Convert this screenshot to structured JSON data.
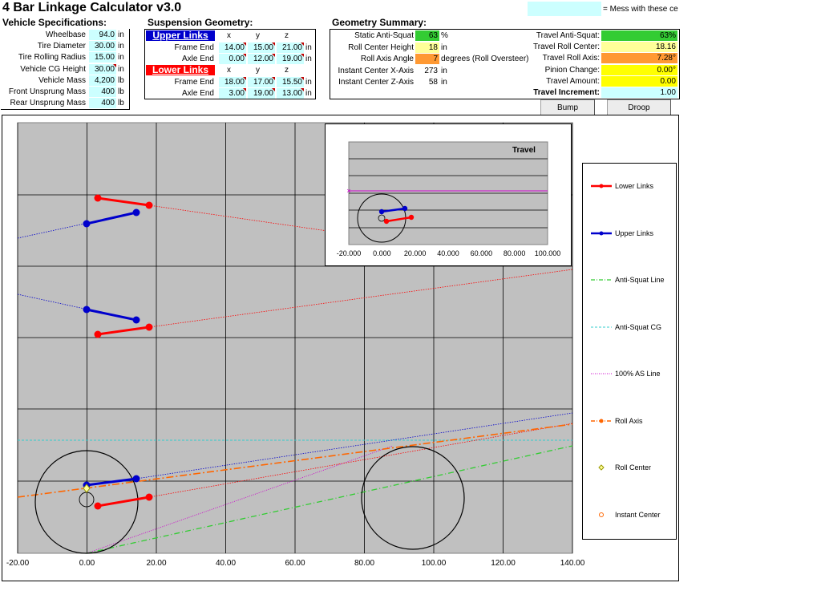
{
  "title": "4 Bar Linkage Calculator v3.0",
  "legend_note": "= Mess with these ce",
  "vehicle": {
    "heading": "Vehicle Specifications:",
    "rows": [
      {
        "label": "Wheelbase",
        "value": "94.0",
        "unit": "in"
      },
      {
        "label": "Tire Diameter",
        "value": "30.00",
        "unit": "in"
      },
      {
        "label": "Tire Rolling Radius",
        "value": "15.00",
        "unit": "in"
      },
      {
        "label": "Vehicle CG Height",
        "value": "30.00",
        "unit": "in"
      },
      {
        "label": "Vehicle Mass",
        "value": "4,200",
        "unit": "lb"
      },
      {
        "label": "Front Unsprung Mass",
        "value": "400",
        "unit": "lb"
      },
      {
        "label": "Rear Unsprung Mass",
        "value": "400",
        "unit": "lb"
      }
    ]
  },
  "suspension": {
    "heading": "Suspension Geometry:",
    "upper_label": "Upper Links",
    "lower_label": "Lower Links",
    "cols": [
      "x",
      "y",
      "z"
    ],
    "unit": "in",
    "upper": [
      {
        "label": "Frame End",
        "x": "14.00",
        "y": "15.00",
        "z": "21.00"
      },
      {
        "label": "Axle End",
        "x": "0.00",
        "y": "12.00",
        "z": "19.00"
      }
    ],
    "lower": [
      {
        "label": "Frame End",
        "x": "18.00",
        "y": "17.00",
        "z": "15.50"
      },
      {
        "label": "Axle End",
        "x": "3.00",
        "y": "19.00",
        "z": "13.00"
      }
    ]
  },
  "summary": {
    "heading": "Geometry Summary:",
    "left": [
      {
        "label": "Static Anti-Squat",
        "value": "63",
        "unit": "%",
        "color": "#33cc33"
      },
      {
        "label": "Roll Center Height",
        "value": "18",
        "unit": "in",
        "color": "#ffff99"
      },
      {
        "label": "Roll Axis Angle",
        "value": "7",
        "unit": "degrees (Roll Oversteer)",
        "color": "#ff9933"
      },
      {
        "label": "Instant Center X-Axis",
        "value": "273",
        "unit": "in",
        "color": "#ffffff"
      },
      {
        "label": "Instant Center Z-Axis",
        "value": "58",
        "unit": "in",
        "color": "#ffffff"
      }
    ],
    "right": [
      {
        "label": "Travel Anti-Squat:",
        "value": "63%",
        "color": "#33cc33"
      },
      {
        "label": "Travel Roll Center:",
        "value": "18.16",
        "color": "#ffff99"
      },
      {
        "label": "Travel Roll Axis:",
        "value": "7.28°",
        "color": "#ff9933"
      },
      {
        "label": "Pinion Change:",
        "value": "0.00°",
        "color": "#ffff00"
      },
      {
        "label": "Travel Amount:",
        "value": "0.00",
        "color": "#ffff00"
      },
      {
        "label": "Travel Increment:",
        "value": "1.00",
        "color": "#ccffff"
      }
    ]
  },
  "buttons": {
    "bump": "Bump",
    "droop": "Droop"
  },
  "main_chart": {
    "x_ticks": [
      "-20.00",
      "0.00",
      "20.00",
      "40.00",
      "60.00",
      "80.00",
      "100.00",
      "120.00",
      "140.00"
    ]
  },
  "inset": {
    "title": "Travel",
    "x_ticks": [
      "-20.000",
      "0.000",
      "20.000",
      "40.000",
      "60.000",
      "80.000",
      "100.000"
    ]
  },
  "legend": [
    {
      "label": "Lower Links",
      "color": "#ff0000",
      "style": "solid-marker"
    },
    {
      "label": "Upper Links",
      "color": "#0000cc",
      "style": "solid-marker"
    },
    {
      "label": "Anti-Squat Line",
      "color": "#33cc33",
      "style": "dashdot"
    },
    {
      "label": "Anti-Squat CG",
      "color": "#33cccc",
      "style": "dash"
    },
    {
      "label": "100% AS Line",
      "color": "#cc00cc",
      "style": "dot"
    },
    {
      "label": "Roll Axis",
      "color": "#ff6600",
      "style": "dashdot-marker"
    },
    {
      "label": "Roll Center",
      "color": "#999900",
      "style": "diamond"
    },
    {
      "label": "Instant Center",
      "color": "#ff6600",
      "style": "circle"
    }
  ]
}
